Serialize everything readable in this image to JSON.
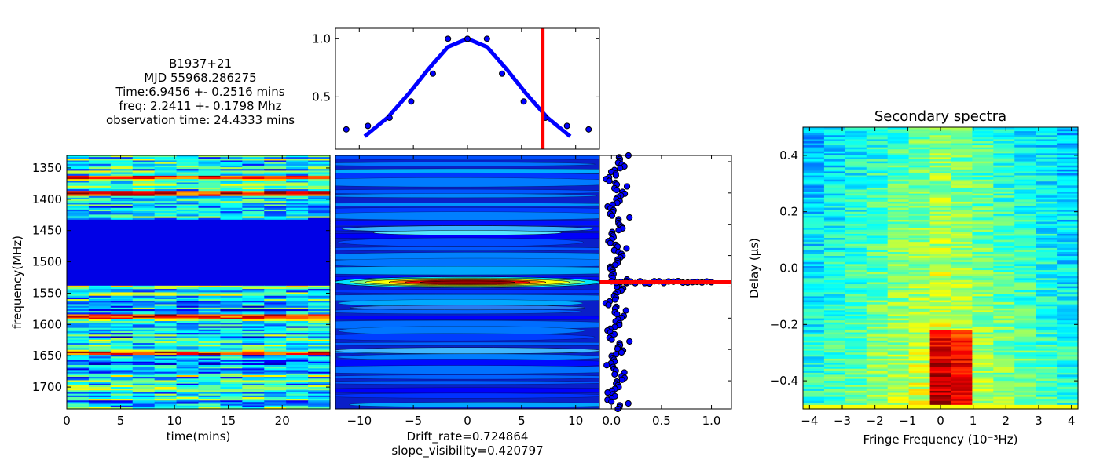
{
  "info": {
    "source": "B1937+21",
    "mjd": "MJD 55968.286275",
    "time": "Time:6.9456 +- 0.2516 mins",
    "freq": "freq: 2.2411 +- 0.1798 Mhz",
    "obs": "observation time: 24.4333 mins"
  },
  "chart_data": [
    {
      "id": "dynamic-spectrum",
      "type": "heatmap",
      "xlabel": "time(mins)",
      "ylabel": "frequency(MHz)",
      "xlim": [
        0,
        24.4333
      ],
      "ylim": [
        1735,
        1330
      ],
      "xticks": [
        0,
        5,
        10,
        15,
        20
      ],
      "yticks": [
        1350,
        1400,
        1450,
        1500,
        1550,
        1600,
        1650,
        1700
      ],
      "masked_band_mhz": [
        1433,
        1537
      ],
      "bright_channels_mhz": [
        1389,
        1392,
        1587,
        1590,
        1647,
        1365
      ],
      "colormap": "jet"
    },
    {
      "id": "time-profile",
      "type": "line",
      "yticks": [
        0.5,
        1.0
      ],
      "xlim": [
        -12.2,
        12.2
      ],
      "ylim": [
        0.05,
        1.09
      ],
      "points": {
        "x": [
          -11.2,
          -9.2,
          -7.2,
          -5.2,
          -3.2,
          -1.8,
          0.0,
          1.8,
          3.2,
          5.2,
          7.2,
          9.2,
          11.2
        ],
        "y": [
          0.22,
          0.25,
          0.32,
          0.46,
          0.7,
          1.0,
          1.0,
          1.0,
          0.7,
          0.46,
          0.32,
          0.25,
          0.22
        ]
      },
      "fit": {
        "x": [
          -9.5,
          -7.4,
          -5.4,
          -3.6,
          -1.8,
          0,
          1.8,
          3.6,
          5.4,
          7.4,
          9.5
        ],
        "y": [
          0.16,
          0.32,
          0.53,
          0.74,
          0.93,
          1.0,
          0.93,
          0.74,
          0.53,
          0.32,
          0.16
        ]
      },
      "marker_x": 6.9456,
      "colors": {
        "fit": "#0000ff",
        "marker": "#ff0000"
      }
    },
    {
      "id": "acf-2d",
      "type": "heatmap",
      "xticks": [
        -10,
        -5,
        0,
        5,
        10
      ],
      "xlim": [
        -12.2,
        12.2
      ],
      "xlabel": "Drift_rate=0.724864",
      "xlabel2": "slope_visibility=0.420797",
      "colormap": "jet"
    },
    {
      "id": "freq-profile",
      "type": "scatter",
      "xticks": [
        0.0,
        0.5,
        1.0
      ],
      "xlim": [
        -0.12,
        1.2
      ],
      "peak_value": 1.0,
      "marker_value": 0.0,
      "colors": {
        "points": "#0000ff",
        "marker": "#ff0000"
      }
    },
    {
      "id": "secondary-spectrum",
      "type": "heatmap",
      "title": "Secondary spectra",
      "xlabel": "Fringe Frequency (10⁻³Hz)",
      "ylabel": "Delay (μs)",
      "xlim": [
        -4.2,
        4.2
      ],
      "ylim": [
        -0.5,
        0.5
      ],
      "xticks": [
        -4,
        -3,
        -2,
        -1,
        0,
        1,
        2,
        3,
        4
      ],
      "yticks": [
        -0.4,
        -0.2,
        0.0,
        0.2,
        0.4
      ],
      "colormap": "jet"
    }
  ]
}
